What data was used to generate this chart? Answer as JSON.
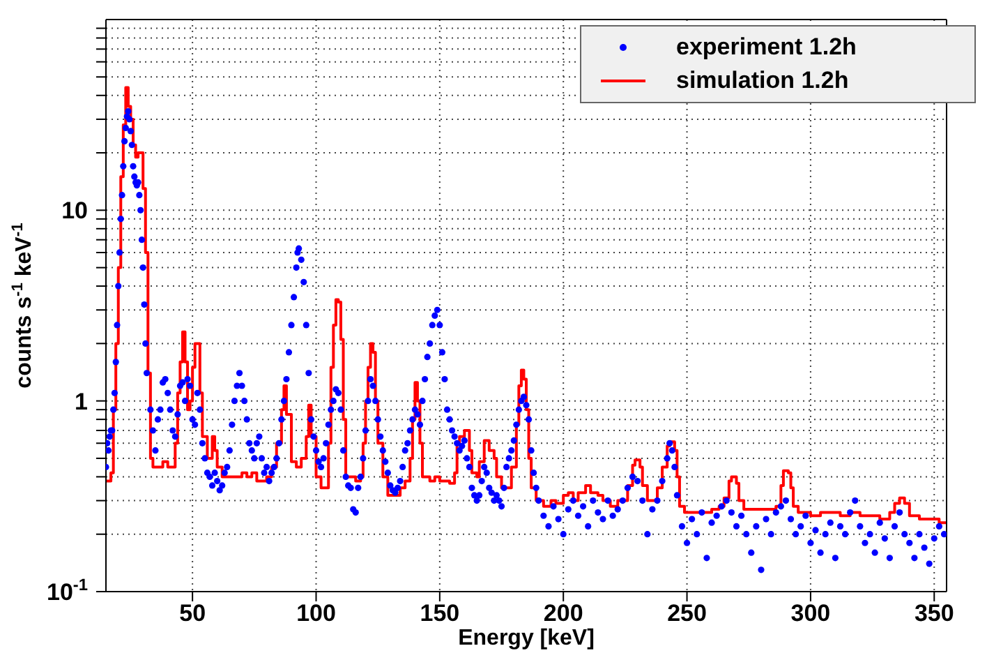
{
  "chart_data": {
    "type": "scatter",
    "xlabel": "Energy [keV]",
    "ylabel": "counts s$^{-1}$ keV$^{-1}$",
    "xlim": [
      15,
      355
    ],
    "xticks": [
      50,
      100,
      150,
      200,
      250,
      300,
      350
    ],
    "ylim": [
      0.1,
      100
    ],
    "yticks": [
      {
        "value": 0.1,
        "label": "10$^{-1}$"
      },
      {
        "value": 0.2,
        "label": null
      },
      {
        "value": 0.3,
        "label": null
      },
      {
        "value": 0.4,
        "label": null
      },
      {
        "value": 0.5,
        "label": null
      },
      {
        "value": 0.6,
        "label": null
      },
      {
        "value": 0.7,
        "label": null
      },
      {
        "value": 0.8,
        "label": null
      },
      {
        "value": 0.9,
        "label": null
      },
      1,
      {
        "value": 2,
        "label": null
      },
      {
        "value": 3,
        "label": null
      },
      {
        "value": 4,
        "label": null
      },
      {
        "value": 5,
        "label": null
      },
      {
        "value": 6,
        "label": null
      },
      {
        "value": 7,
        "label": null
      },
      {
        "value": 8,
        "label": null
      },
      {
        "value": 9,
        "label": null
      },
      10,
      {
        "value": 20,
        "label": null
      },
      {
        "value": 30,
        "label": null
      },
      {
        "value": 40,
        "label": null
      },
      {
        "value": 50,
        "label": null
      },
      {
        "value": 60,
        "label": null
      },
      {
        "value": 70,
        "label": null
      },
      {
        "value": 80,
        "label": null
      },
      {
        "value": 90,
        "label": null
      }
    ],
    "log": "y",
    "grid": true,
    "legend": "top right",
    "series": [
      {
        "name": "experiment 1.2h",
        "marker": "circle",
        "color": "#0000ff",
        "x": [
          15,
          15.5,
          16,
          16.5,
          17,
          17.5,
          18,
          18.5,
          19,
          19.5,
          20,
          20.5,
          21,
          21.5,
          22,
          22.5,
          23,
          23.5,
          24,
          24.5,
          25,
          25.5,
          26,
          26.5,
          27,
          27.5,
          28,
          28.5,
          29,
          29.5,
          30,
          30.5,
          31,
          31.5,
          33,
          34,
          35,
          36,
          37,
          38,
          39,
          40,
          41,
          42,
          43,
          44,
          45,
          46,
          47,
          48,
          49,
          50,
          51,
          52,
          53,
          54,
          55,
          56,
          57,
          58,
          59,
          60,
          61,
          62,
          63,
          64,
          65,
          66,
          67,
          68,
          69,
          70,
          71,
          72,
          73,
          74,
          75,
          76,
          77,
          78,
          79,
          80,
          81,
          82,
          83,
          84,
          85,
          86,
          87,
          88,
          89,
          90,
          91,
          92,
          92.5,
          93,
          94,
          95,
          96,
          97,
          98,
          99,
          100,
          101,
          102,
          103,
          104,
          105,
          106,
          107,
          108,
          109,
          110,
          111,
          112,
          113,
          114,
          115,
          116,
          117,
          118,
          119,
          120,
          121,
          122,
          123,
          124,
          125,
          126,
          127,
          128,
          129,
          130,
          131,
          132,
          133,
          134,
          135,
          136,
          137,
          138,
          139,
          140,
          141,
          142,
          143,
          144,
          145,
          146,
          147,
          148,
          149,
          150,
          151,
          152,
          153,
          154,
          155,
          156,
          157,
          158,
          159,
          160,
          161,
          162,
          163,
          164,
          165,
          166,
          167,
          168,
          169,
          170,
          171,
          172,
          173,
          174,
          175,
          176,
          177,
          178,
          179,
          180,
          181,
          182,
          183,
          184,
          185,
          186,
          187,
          188,
          189,
          190,
          192,
          194,
          196,
          198,
          200,
          202,
          204,
          206,
          208,
          210,
          212,
          214,
          216,
          218,
          220,
          222,
          224,
          226,
          228,
          230,
          232,
          234,
          236,
          238,
          240,
          242,
          243,
          244,
          245,
          246,
          248,
          250,
          252,
          254,
          256,
          258,
          260,
          262,
          264,
          266,
          268,
          270,
          272,
          274,
          276,
          278,
          280,
          282,
          284,
          286,
          288,
          290,
          292,
          294,
          296,
          298,
          300,
          302,
          304,
          306,
          308,
          310,
          312,
          314,
          316,
          318,
          320,
          322,
          324,
          326,
          328,
          330,
          332,
          334,
          336,
          338,
          340,
          342,
          344,
          346,
          348,
          350,
          352,
          354
        ],
        "values": [
          0.45,
          0.6,
          0.55,
          0.65,
          0.7,
          0.7,
          0.9,
          1.1,
          1.6,
          2.5,
          4,
          6,
          9,
          12,
          17,
          23,
          27,
          31,
          33,
          30,
          26,
          22,
          17,
          15,
          14,
          13.5,
          14,
          12,
          10,
          7,
          5,
          3.2,
          2,
          1.4,
          0.9,
          0.7,
          0.55,
          0.8,
          0.9,
          1.25,
          1.3,
          1.1,
          0.9,
          0.7,
          0.65,
          0.85,
          1.2,
          1.25,
          1,
          1.3,
          1.2,
          0.8,
          0.75,
          1.1,
          0.9,
          0.6,
          0.5,
          0.42,
          0.4,
          0.36,
          0.42,
          0.38,
          0.34,
          0.36,
          0.42,
          0.45,
          0.55,
          0.75,
          1,
          1.2,
          1.4,
          1.2,
          1,
          0.8,
          0.6,
          0.55,
          0.5,
          0.6,
          0.65,
          0.5,
          0.42,
          0.45,
          0.38,
          0.42,
          0.45,
          0.5,
          0.6,
          0.8,
          1,
          1.3,
          1.8,
          2.5,
          3.5,
          5,
          6,
          6.3,
          5.5,
          4.2,
          2.5,
          1.4,
          0.8,
          0.65,
          0.55,
          0.48,
          0.45,
          0.5,
          0.6,
          0.75,
          0.9,
          1,
          1.15,
          1.1,
          0.9,
          0.55,
          0.4,
          0.36,
          0.35,
          0.27,
          0.26,
          0.35,
          0.4,
          0.5,
          0.7,
          1,
          1.3,
          1.2,
          1,
          0.8,
          0.65,
          0.55,
          0.48,
          0.42,
          0.36,
          0.34,
          0.33,
          0.35,
          0.38,
          0.45,
          0.55,
          0.6,
          0.7,
          0.8,
          0.9,
          0.85,
          0.75,
          1,
          1.3,
          1.7,
          2,
          2.5,
          2.8,
          3,
          2.5,
          1.8,
          1.3,
          0.9,
          0.8,
          0.7,
          0.65,
          0.6,
          0.55,
          0.58,
          0.62,
          0.5,
          0.45,
          0.35,
          0.32,
          0.3,
          0.32,
          0.38,
          0.45,
          0.42,
          0.35,
          0.33,
          0.3,
          0.32,
          0.3,
          0.28,
          0.35,
          0.45,
          0.5,
          0.55,
          0.62,
          0.75,
          0.9,
          1,
          1.05,
          0.95,
          0.8,
          0.55,
          0.42,
          0.35,
          0.3,
          0.25,
          0.22,
          0.28,
          0.24,
          0.2,
          0.27,
          0.3,
          0.25,
          0.28,
          0.22,
          0.3,
          0.26,
          0.24,
          0.3,
          0.25,
          0.27,
          0.3,
          0.35,
          0.4,
          0.38,
          0.3,
          0.2,
          0.27,
          0.3,
          0.38,
          0.5,
          0.6,
          0.55,
          0.45,
          0.32,
          0.22,
          0.18,
          0.24,
          0.2,
          0.26,
          0.15,
          0.23,
          0.25,
          0.28,
          0.3,
          0.26,
          0.22,
          0.25,
          0.2,
          0.16,
          0.22,
          0.13,
          0.24,
          0.2,
          0.26,
          0.28,
          0.3,
          0.24,
          0.2,
          0.22,
          0.25,
          0.18,
          0.21,
          0.16,
          0.2,
          0.23,
          0.15,
          0.22,
          0.2,
          0.26,
          0.3,
          0.22,
          0.18,
          0.2,
          0.16,
          0.23,
          0.19,
          0.15,
          0.22,
          0.26,
          0.2,
          0.18,
          0.15,
          0.2,
          0.17,
          0.14,
          0.19,
          0.22,
          0.2
        ]
      },
      {
        "name": "simulation 1.2h",
        "type": "step",
        "line_style": "solid",
        "color": "#ff0000",
        "x": [
          15,
          17,
          18,
          19,
          20,
          21,
          22,
          23,
          24,
          25,
          26,
          27,
          28,
          29,
          30,
          31,
          32,
          33,
          34,
          36,
          38,
          40,
          42,
          43,
          44,
          45,
          46,
          47,
          48,
          49,
          50,
          51,
          52,
          53,
          54,
          56,
          58,
          59,
          60,
          62,
          66,
          70,
          72,
          74,
          76,
          78,
          80,
          82,
          84,
          86,
          87,
          88,
          90,
          92,
          94,
          96,
          97,
          98,
          100,
          102,
          104,
          105,
          106,
          107,
          108,
          109,
          110,
          111,
          112,
          116,
          118,
          119,
          120,
          121,
          122,
          123,
          124,
          125,
          127,
          129,
          132,
          134,
          136,
          138,
          139,
          140,
          141,
          142,
          143,
          146,
          148,
          150,
          154,
          156,
          157,
          158,
          160,
          162,
          163,
          165,
          166,
          168,
          170,
          172,
          173,
          175,
          177,
          179,
          181,
          182,
          183,
          184,
          185,
          186,
          187,
          189,
          192,
          195,
          197,
          200,
          202,
          204,
          206,
          209,
          211,
          214,
          216,
          219,
          222,
          226,
          228,
          229,
          231,
          232,
          234,
          236,
          238,
          240,
          242,
          243,
          245,
          246,
          247,
          249,
          252,
          256,
          260,
          263,
          265,
          267,
          268,
          270,
          271,
          273,
          276,
          280,
          283,
          286,
          288,
          289,
          291,
          292,
          293,
          295,
          300,
          304,
          308,
          312,
          316,
          320,
          324,
          328,
          332,
          334,
          336,
          338,
          340,
          344,
          348,
          352,
          355
        ],
        "values": [
          0.38,
          0.42,
          0.9,
          2,
          5,
          15,
          28,
          44,
          35,
          30,
          22,
          19,
          20,
          20,
          13,
          6,
          1.4,
          0.5,
          0.45,
          0.45,
          0.48,
          0.45,
          0.45,
          0.6,
          1.1,
          1.6,
          2.3,
          1.6,
          0.9,
          1,
          1.5,
          2,
          2,
          1.1,
          0.65,
          0.5,
          0.65,
          0.55,
          0.45,
          0.4,
          0.4,
          0.42,
          0.4,
          0.42,
          0.38,
          0.38,
          0.4,
          0.45,
          0.6,
          0.9,
          1.2,
          0.85,
          0.48,
          0.45,
          0.5,
          0.65,
          0.95,
          0.65,
          0.4,
          0.35,
          0.35,
          0.6,
          1.5,
          2.5,
          3.4,
          3.3,
          2.1,
          0.8,
          0.4,
          0.38,
          0.4,
          0.6,
          1,
          1.5,
          2,
          1.8,
          1,
          0.6,
          0.4,
          0.32,
          0.32,
          0.35,
          0.38,
          0.5,
          0.8,
          1.25,
          1,
          0.6,
          0.4,
          0.38,
          0.4,
          0.38,
          0.37,
          0.42,
          0.6,
          0.65,
          0.7,
          0.55,
          0.42,
          0.4,
          0.48,
          0.62,
          0.55,
          0.5,
          0.4,
          0.35,
          0.35,
          0.45,
          0.75,
          1.2,
          1.45,
          1.3,
          0.9,
          0.5,
          0.35,
          0.3,
          0.28,
          0.3,
          0.29,
          0.32,
          0.33,
          0.3,
          0.33,
          0.36,
          0.33,
          0.32,
          0.3,
          0.28,
          0.3,
          0.36,
          0.46,
          0.49,
          0.45,
          0.36,
          0.3,
          0.3,
          0.35,
          0.45,
          0.58,
          0.61,
          0.55,
          0.4,
          0.28,
          0.26,
          0.26,
          0.26,
          0.27,
          0.28,
          0.31,
          0.38,
          0.4,
          0.37,
          0.3,
          0.27,
          0.27,
          0.27,
          0.27,
          0.28,
          0.36,
          0.43,
          0.42,
          0.35,
          0.28,
          0.26,
          0.25,
          0.26,
          0.26,
          0.25,
          0.26,
          0.25,
          0.25,
          0.24,
          0.26,
          0.29,
          0.31,
          0.29,
          0.25,
          0.24,
          0.24,
          0.23,
          0.23
        ]
      }
    ]
  }
}
